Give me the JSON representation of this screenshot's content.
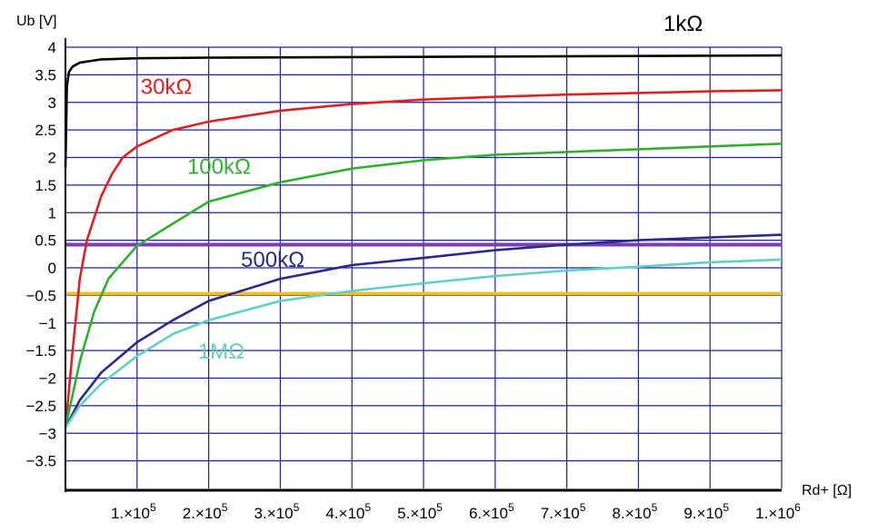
{
  "chart_data": {
    "type": "line",
    "xlabel": "Rd+ [Ω]",
    "ylabel": "Ub [V]",
    "xlim": [
      0,
      1000000
    ],
    "ylim": [
      -4,
      4
    ],
    "grid": true,
    "x_tick_values": [
      100000,
      200000,
      300000,
      400000,
      500000,
      600000,
      700000,
      800000,
      900000,
      1000000
    ],
    "x_tick_mantissas": [
      "1.×10",
      "2.×10",
      "3.×10",
      "4.×10",
      "5.×10",
      "6.×10",
      "7.×10",
      "8.×10",
      "9.×10",
      "1.×10"
    ],
    "x_tick_exponents": [
      "5",
      "5",
      "5",
      "5",
      "5",
      "5",
      "5",
      "5",
      "5",
      "6"
    ],
    "y_ticks": [
      4,
      3.5,
      3,
      2.5,
      2,
      1.5,
      1,
      0.5,
      0,
      -0.5,
      -1,
      -1.5,
      -2,
      -2.5,
      -3,
      -3.5
    ],
    "y_tick_labels": [
      "4",
      "3.5",
      "3",
      "2.5",
      "2",
      "1.5",
      "1",
      "0.5",
      "0",
      "−0.5",
      "−1",
      "−1.5",
      "−2",
      "−2.5",
      "−3",
      "−3.5"
    ],
    "series": [
      {
        "name": "1kΩ",
        "color": "#000000",
        "x": [
          0,
          2000,
          5000,
          10000,
          20000,
          50000,
          100000,
          200000,
          400000,
          600000,
          800000,
          1000000
        ],
        "y": [
          1.8,
          3.3,
          3.55,
          3.65,
          3.72,
          3.78,
          3.8,
          3.81,
          3.82,
          3.83,
          3.84,
          3.85
        ]
      },
      {
        "name": "30kΩ",
        "color": "#e02020",
        "x": [
          0,
          10000,
          20000,
          30000,
          40000,
          50000,
          65000,
          80000,
          100000,
          150000,
          200000,
          300000,
          400000,
          500000,
          600000,
          700000,
          800000,
          900000,
          1000000
        ],
        "y": [
          -2.9,
          -1.5,
          -0.2,
          0.5,
          0.9,
          1.3,
          1.7,
          2.0,
          2.2,
          2.5,
          2.65,
          2.85,
          2.97,
          3.05,
          3.1,
          3.14,
          3.17,
          3.2,
          3.22
        ]
      },
      {
        "name": "100kΩ",
        "color": "#30b030",
        "x": [
          0,
          20000,
          40000,
          60000,
          80000,
          100000,
          150000,
          200000,
          300000,
          400000,
          500000,
          600000,
          700000,
          800000,
          900000,
          1000000
        ],
        "y": [
          -2.9,
          -1.7,
          -0.8,
          -0.2,
          0.1,
          0.4,
          0.8,
          1.2,
          1.55,
          1.8,
          1.95,
          2.05,
          2.1,
          2.15,
          2.2,
          2.25
        ]
      },
      {
        "name": "500kΩ",
        "color": "#2a2a8a",
        "x": [
          0,
          20000,
          50000,
          100000,
          150000,
          200000,
          300000,
          400000,
          500000,
          600000,
          700000,
          800000,
          900000,
          1000000
        ],
        "y": [
          -2.9,
          -2.4,
          -1.9,
          -1.35,
          -0.95,
          -0.6,
          -0.2,
          0.05,
          0.18,
          0.32,
          0.42,
          0.5,
          0.55,
          0.6
        ]
      },
      {
        "name": "1MΩ",
        "color": "#60cfc5",
        "x": [
          0,
          20000,
          50000,
          100000,
          150000,
          200000,
          300000,
          400000,
          500000,
          600000,
          700000,
          800000,
          900000,
          1000000
        ],
        "y": [
          -2.9,
          -2.5,
          -2.1,
          -1.6,
          -1.2,
          -0.95,
          -0.6,
          -0.42,
          -0.28,
          -0.15,
          -0.05,
          0.02,
          0.1,
          0.15
        ]
      }
    ],
    "reference_lines": [
      {
        "y": 0.42,
        "color": "#7b3fb5"
      },
      {
        "y": -0.47,
        "color": "#f0c020"
      }
    ],
    "curve_labels": [
      {
        "text": "1kΩ",
        "x": 835000,
        "y": 4.3,
        "color": "#000000"
      },
      {
        "text": "30kΩ",
        "x": 105000,
        "y": 3.15,
        "color": "#e02020"
      },
      {
        "text": "100kΩ",
        "x": 170000,
        "y": 1.7,
        "color": "#30b030"
      },
      {
        "text": "500kΩ",
        "x": 245000,
        "y": 0.02,
        "color": "#2a2a8a"
      },
      {
        "text": "1MΩ",
        "x": 185000,
        "y": -1.65,
        "color": "#60cfc5"
      }
    ]
  }
}
